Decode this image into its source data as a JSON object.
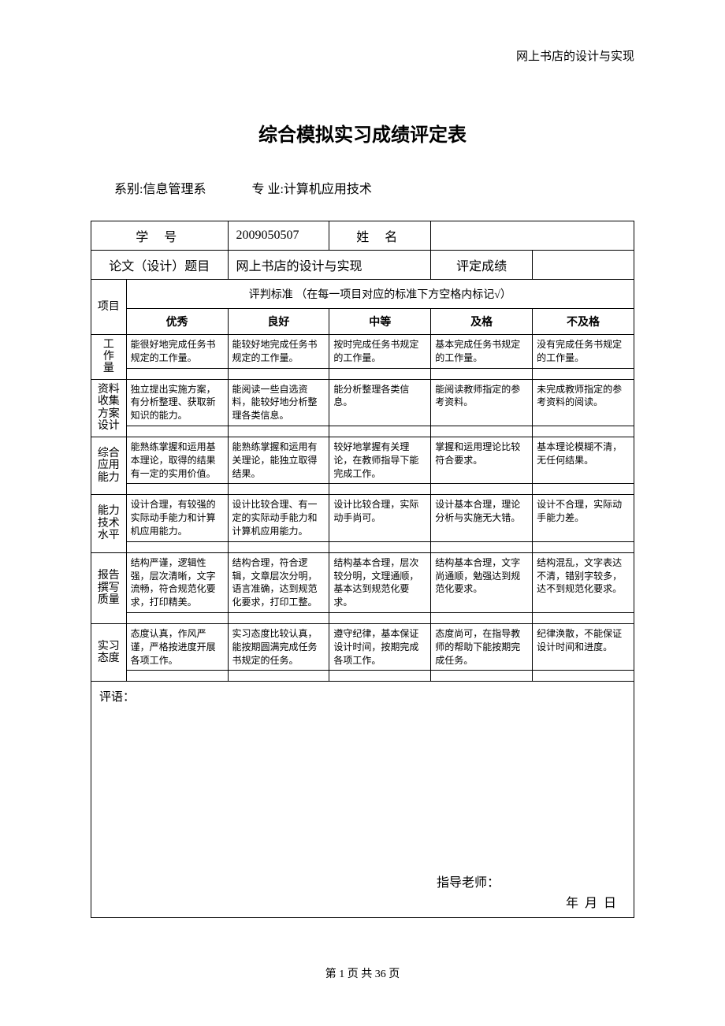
{
  "header": {
    "running_title": "网上书店的设计与实现"
  },
  "title": "综合模拟实习成绩评定表",
  "dept": {
    "dept_label": "系别:",
    "dept_value": "信息管理系",
    "major_label": "专 业:",
    "major_value": "计算机应用技术"
  },
  "info_row": {
    "student_no_label": "学  号",
    "student_no_value": "2009050507",
    "name_label": "姓 名",
    "name_value": ""
  },
  "topic_row": {
    "topic_label": "论文（设计）题目",
    "topic_value": "网上书店的设计与实现",
    "grade_label": "评定成绩",
    "grade_value": ""
  },
  "criteria": {
    "project_label": "项目",
    "standards_header": "评判标准   （在每一项目对应的标准下方空格内标记√）",
    "levels": [
      "优秀",
      "良好",
      "中等",
      "及格",
      "不及格"
    ],
    "rows": [
      {
        "name_chars": [
          "工",
          "作",
          "量"
        ],
        "cells": [
          "能很好地完成任务书规定的工作量。",
          "能较好地完成任务书规定的工作量。",
          "按时完成任务书规定的工作量。",
          "基本完成任务书规定的工作量。",
          "没有完成任务书规定的工作量。"
        ]
      },
      {
        "name_chars": [
          "资料",
          "收集",
          "方案",
          "设计"
        ],
        "cells": [
          "独立提出实施方案，有分析整理、获取新知识的能力。",
          "能阅读一些自选资料，能较好地分析整理各类信息。",
          "能分析整理各类信息。",
          "能阅读教师指定的参考资料。",
          "未完成教师指定的参考资料的阅读。"
        ]
      },
      {
        "name_chars": [
          "综合",
          "应用",
          "能力"
        ],
        "cells": [
          "能熟练掌握和运用基本理论，取得的结果有一定的实用价值。",
          "能熟练掌握和运用有关理论，能独立取得结果。",
          "较好地掌握有关理论，在教师指导下能完成工作。",
          "掌握和运用理论比较符合要求。",
          "基本理论模糊不清，无任何结果。"
        ]
      },
      {
        "name_chars": [
          "能力",
          "技术",
          "水平"
        ],
        "cells": [
          "设计合理，有较强的实际动手能力和计算机应用能力。",
          "设计比较合理、有一定的实际动手能力和计算机应用能力。",
          "设计比较合理，实际动手尚可。",
          "设计基本合理，理论分析与实施无大错。",
          "设计不合理，实际动手能力差。"
        ]
      },
      {
        "name_chars": [
          "报告",
          "撰写",
          "质量"
        ],
        "cells": [
          "结构严谨，逻辑性强，层次清晰，文字流畅，符合规范化要求，打印精美。",
          "结构合理，符合逻辑，文章层次分明，语言准确，达到规范化要求，打印工整。",
          "结构基本合理，层次较分明，文理通顺，基本达到规范化要求。",
          "结构基本合理，文字尚通顺，勉强达到规范化要求。",
          "结构混乱，文字表达不清，错别字较多，达不到规范化要求。"
        ]
      },
      {
        "name_chars": [
          "实习",
          "",
          "态度"
        ],
        "cells": [
          "态度认真，作风严谨，严格按进度开展各项工作。",
          "实习态度比较认真，能按期圆满完成任务书规定的任务。",
          "遵守纪律，基本保证设计时间，按期完成各项工作。",
          "态度尚可，在指导教师的帮助下能按期完成任务。",
          "纪律涣散，不能保证设计时间和进度。"
        ]
      }
    ]
  },
  "comments": {
    "label": "评语：",
    "teacher_label": "指导老师：",
    "date_tpl": "年        月        日"
  },
  "footer": {
    "text": "第  1  页  共  36  页"
  },
  "colors": {
    "text": "#000000",
    "bg": "#ffffff",
    "border": "#000000"
  }
}
